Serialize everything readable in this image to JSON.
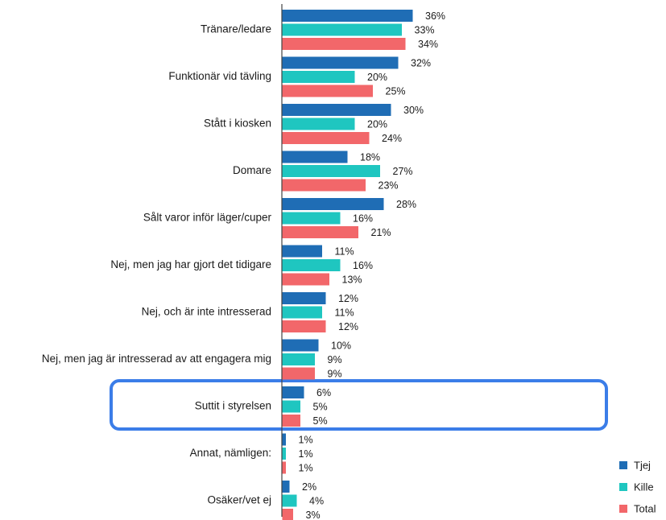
{
  "chart_data": {
    "type": "bar",
    "orientation": "horizontal",
    "title": "",
    "xlabel": "",
    "ylabel": "",
    "xlim": [
      0,
      100
    ],
    "categories": [
      "Tränare/ledare",
      "Funktionär vid tävling",
      "Stått i kiosken",
      "Domare",
      "Sålt varor inför läger/cuper",
      "Nej, men jag har gjort det tidigare",
      "Nej, och är inte intresserad",
      "Nej, men jag är intresserad av att engagera mig",
      "Suttit i styrelsen",
      "Annat, nämligen:",
      "Osäker/vet ej"
    ],
    "series": [
      {
        "name": "Tjej",
        "color": "#1f6db5",
        "values": [
          36,
          32,
          30,
          18,
          28,
          11,
          12,
          10,
          6,
          1,
          2
        ]
      },
      {
        "name": "Kille",
        "color": "#1fc6c0",
        "values": [
          33,
          20,
          20,
          27,
          16,
          16,
          11,
          9,
          5,
          1,
          4
        ]
      },
      {
        "name": "Total",
        "color": "#f2676a",
        "values": [
          34,
          25,
          24,
          23,
          21,
          13,
          12,
          9,
          5,
          1,
          3
        ]
      }
    ],
    "value_suffix": "%",
    "legend_position": "bottom-right",
    "highlighted_category": "Suttit i styrelsen",
    "highlight_color": "#3b7de8",
    "grid": false
  }
}
